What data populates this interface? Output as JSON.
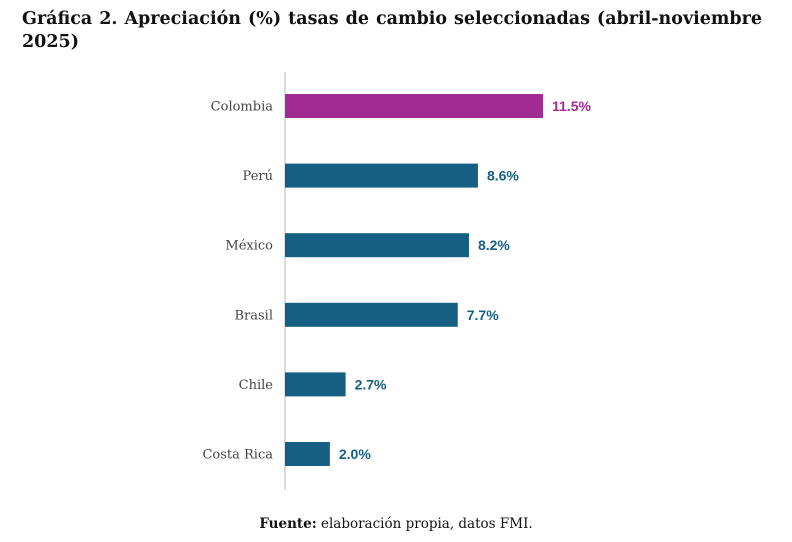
{
  "chart_data": {
    "type": "bar",
    "orientation": "horizontal",
    "title": "Gráfica 2. Apreciación (%) tasas de cambio seleccionadas (abril-noviembre 2025)",
    "categories": [
      "Colombia",
      "Perú",
      "México",
      "Brasil",
      "Chile",
      "Costa Rica"
    ],
    "values": [
      11.5,
      8.6,
      8.2,
      7.7,
      2.7,
      2.0
    ],
    "value_labels": [
      "11.5%",
      "8.6%",
      "8.2%",
      "7.7%",
      "2.7%",
      "2.0%"
    ],
    "highlight_category": "Colombia",
    "colors": {
      "highlight": "#a02b93",
      "default": "#156082",
      "axis": "#d0d0d0"
    },
    "xlim": [
      0,
      11.5
    ],
    "grid": false,
    "legend": "none"
  },
  "source": {
    "label": "Fuente:",
    "text": " elaboración propia, datos FMI."
  }
}
